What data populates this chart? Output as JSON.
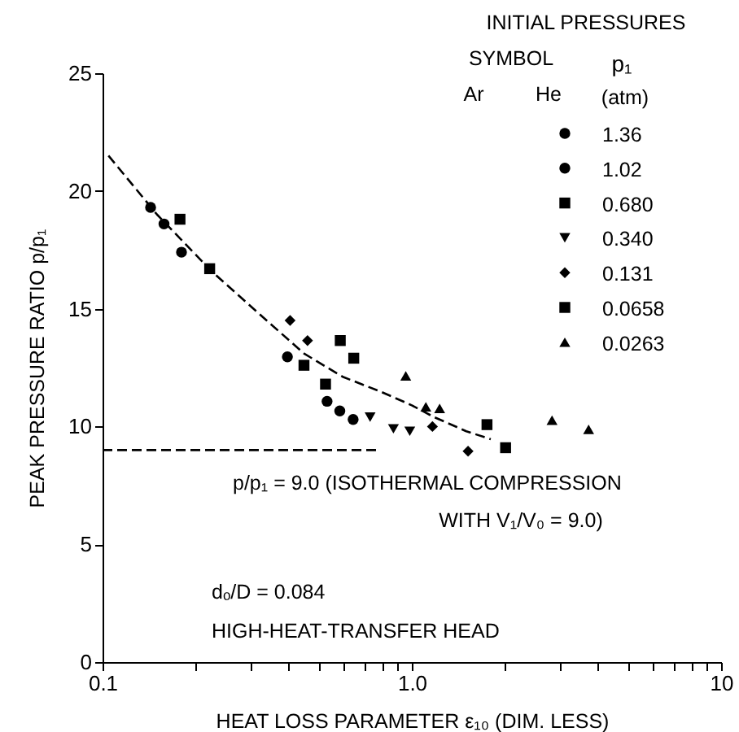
{
  "chart_data": {
    "type": "scatter",
    "xlabel": "HEAT LOSS PARAMETER ε₁₀ (DIM. LESS)",
    "ylabel": "PEAK PRESSURE RATIO p/p₁",
    "legend_title": "INITIAL PRESSURES",
    "legend": "top right",
    "log": "x",
    "grid": false,
    "xlim": [
      0.1,
      10
    ],
    "ylim": [
      0,
      25
    ],
    "xticks": [
      {
        "value": 0.1,
        "label": "0.1"
      },
      {
        "value": 0.2,
        "label": null
      },
      {
        "value": 0.3,
        "label": null
      },
      {
        "value": 0.4,
        "label": null
      },
      {
        "value": 0.5,
        "label": null
      },
      {
        "value": 0.6,
        "label": null
      },
      {
        "value": 0.7,
        "label": null
      },
      {
        "value": 0.8,
        "label": null
      },
      {
        "value": 0.9,
        "label": null
      },
      {
        "value": 1,
        "label": "1.0"
      },
      {
        "value": 2,
        "label": null
      },
      {
        "value": 3,
        "label": null
      },
      {
        "value": 4,
        "label": null
      },
      {
        "value": 5,
        "label": null
      },
      {
        "value": 6,
        "label": null
      },
      {
        "value": 7,
        "label": null
      },
      {
        "value": 8,
        "label": null
      },
      {
        "value": 9,
        "label": null
      },
      {
        "value": 10,
        "label": "10"
      }
    ],
    "yticks": [
      0,
      5,
      10,
      15,
      20,
      25
    ],
    "annotations": [
      "SYMBOL",
      "Ar",
      "He",
      "p₁",
      "(atm)",
      "p/p₁ = 9.0 (ISOTHERMAL COMPRESSION",
      "WITH V₁/V₀ = 9.0)",
      "dₒ/D = 0.084",
      "HIGH-HEAT-TRANSFER HEAD"
    ],
    "series": [
      {
        "type": "line",
        "line_style": "dashed",
        "color": "#000000",
        "x": [
          0.1045,
          0.15,
          0.225,
          0.32,
          0.448,
          0.6,
          0.787,
          1.0,
          1.18,
          1.5,
          1.8
        ],
        "values": [
          21.5,
          19.0,
          16.6,
          14.8,
          13.1,
          12.1,
          11.5,
          10.9,
          10.4,
          9.8,
          9.46
        ]
      },
      {
        "type": "line",
        "line_style": "dashed",
        "color": "#000000",
        "x": [
          0.1,
          0.77
        ],
        "values": [
          9,
          9
        ]
      },
      {
        "name": "1.36",
        "marker": "circle",
        "color": "#000000",
        "x": [
          0.396,
          0.532,
          0.585,
          0.646
        ],
        "values": [
          12.96,
          11.07,
          10.66,
          10.3
        ]
      },
      {
        "name": "1.02",
        "marker": "circle",
        "color": "#000000",
        "x": [
          0.143,
          0.158,
          0.18
        ],
        "values": [
          19.3,
          18.6,
          17.4
        ]
      },
      {
        "name": "0.680",
        "marker": "square",
        "color": "#000000",
        "x": [
          0.178,
          0.222,
          0.448,
          0.526
        ],
        "values": [
          18.8,
          16.7,
          12.6,
          11.8
        ]
      },
      {
        "name": "0.340",
        "marker": "triangle-down",
        "color": "#000000",
        "x": [
          0.733,
          0.872,
          0.985
        ],
        "values": [
          10.4,
          9.9,
          9.8
        ]
      },
      {
        "name": "0.131",
        "marker": "diamond",
        "color": "#000000",
        "x": [
          0.404,
          0.46,
          1.166,
          1.52
        ],
        "values": [
          14.5,
          13.65,
          10.0,
          8.95
        ]
      },
      {
        "name": "0.0658",
        "marker": "square",
        "color": "#000000",
        "x": [
          0.587,
          0.649,
          1.75,
          2.01
        ],
        "values": [
          13.65,
          12.9,
          10.08,
          9.1
        ]
      },
      {
        "name": "0.0263",
        "marker": "triangle",
        "color": "#000000",
        "x": [
          0.956,
          1.11,
          1.23,
          2.84,
          3.73
        ],
        "values": [
          12.15,
          10.84,
          10.77,
          10.27,
          9.88
        ]
      }
    ]
  }
}
